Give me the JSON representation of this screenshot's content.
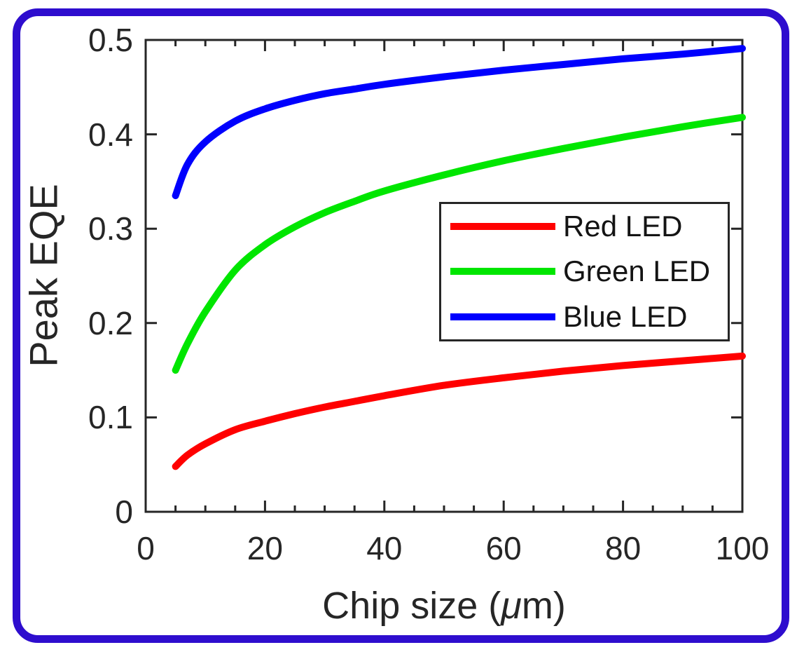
{
  "figure": {
    "border_color": "#2e0dce",
    "background": "#ffffff",
    "axis_color": "#262626",
    "text_color": "#262626"
  },
  "chart_data": {
    "type": "line",
    "title": "",
    "xlabel": "Chip size (μm)",
    "xlabel_parts": {
      "pre": "Chip size (",
      "mu": "μ",
      "post": "m)"
    },
    "ylabel": "Peak EQE",
    "xlim": [
      0,
      100
    ],
    "ylim": [
      0,
      0.5
    ],
    "x_ticks": [
      0,
      20,
      40,
      60,
      80,
      100
    ],
    "x_tick_labels": [
      "0",
      "20",
      "40",
      "60",
      "80",
      "100"
    ],
    "x_minor_tick_step": 5,
    "y_ticks": [
      0,
      0.1,
      0.2,
      0.3,
      0.4,
      0.5
    ],
    "y_tick_labels": [
      "0",
      "0.1",
      "0.2",
      "0.3",
      "0.4",
      "0.5"
    ],
    "grid": false,
    "legend_position": "inside-middle-right",
    "x": [
      5,
      7,
      10,
      15,
      20,
      25,
      30,
      35,
      40,
      50,
      60,
      70,
      80,
      90,
      100
    ],
    "series": [
      {
        "name": "Red LED",
        "color": "#ff0000",
        "values": [
          0.048,
          0.06,
          0.072,
          0.087,
          0.096,
          0.104,
          0.111,
          0.117,
          0.123,
          0.134,
          0.142,
          0.149,
          0.155,
          0.16,
          0.165
        ]
      },
      {
        "name": "Green LED",
        "color": "#00e600",
        "values": [
          0.15,
          0.178,
          0.212,
          0.256,
          0.283,
          0.302,
          0.317,
          0.329,
          0.34,
          0.357,
          0.372,
          0.385,
          0.397,
          0.408,
          0.418
        ]
      },
      {
        "name": "Blue LED",
        "color": "#0000fe",
        "values": [
          0.335,
          0.368,
          0.392,
          0.414,
          0.427,
          0.436,
          0.443,
          0.448,
          0.453,
          0.461,
          0.468,
          0.474,
          0.48,
          0.485,
          0.491
        ]
      }
    ]
  }
}
